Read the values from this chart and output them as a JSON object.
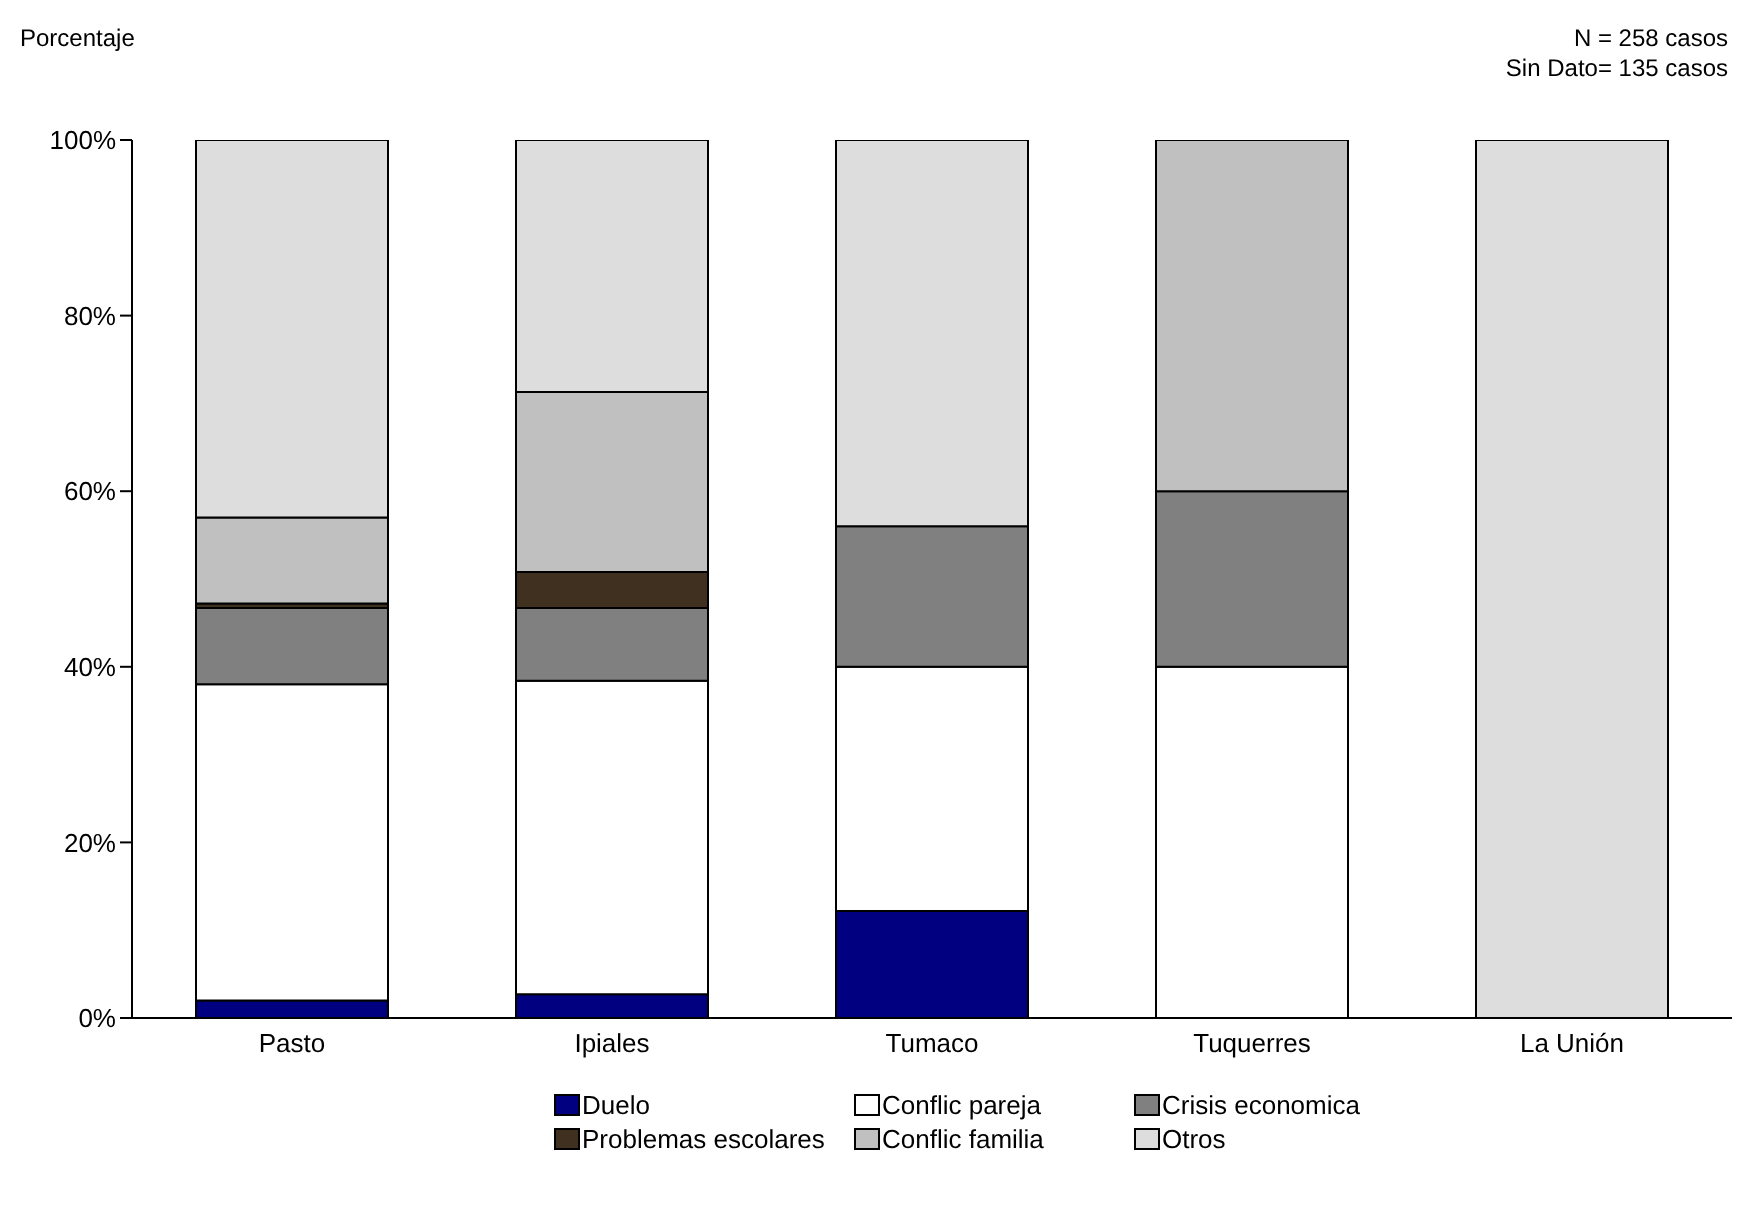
{
  "chart_data": {
    "type": "bar",
    "stacked": true,
    "ylabel": "Porcentaje",
    "annotations": [
      "N = 258 casos",
      "Sin Dato= 135 casos"
    ],
    "categories": [
      "Pasto",
      "Ipiales",
      "Tumaco",
      "Tuquerres",
      "La Unión"
    ],
    "series": [
      {
        "name": "Duelo",
        "color": "#000080",
        "values": [
          2,
          2.7,
          12.2,
          0,
          0
        ]
      },
      {
        "name": "Conflic pareja",
        "color": "#ffffff",
        "values": [
          36,
          35.7,
          27.8,
          40,
          0
        ]
      },
      {
        "name": "Crisis economica",
        "color": "#808080",
        "values": [
          8.7,
          8.3,
          16,
          20,
          0
        ]
      },
      {
        "name": "Problemas escolares",
        "color": "#403020",
        "values": [
          0.5,
          4.1,
          0,
          0,
          0
        ]
      },
      {
        "name": "Conflic familia",
        "color": "#c0c0c0",
        "values": [
          9.8,
          20.5,
          0,
          40,
          0
        ]
      },
      {
        "name": "Otros",
        "color": "#dddddd",
        "values": [
          43,
          28.7,
          44,
          0,
          100
        ]
      }
    ],
    "ylim": [
      0,
      100
    ],
    "yticks": [
      {
        "value": 0,
        "label": "0%"
      },
      {
        "value": 20,
        "label": "20%"
      },
      {
        "value": 40,
        "label": "40%"
      },
      {
        "value": 60,
        "label": "60%"
      },
      {
        "value": 80,
        "label": "80%"
      },
      {
        "value": 100,
        "label": "100%"
      }
    ],
    "grid": false,
    "legend": "bottom"
  }
}
